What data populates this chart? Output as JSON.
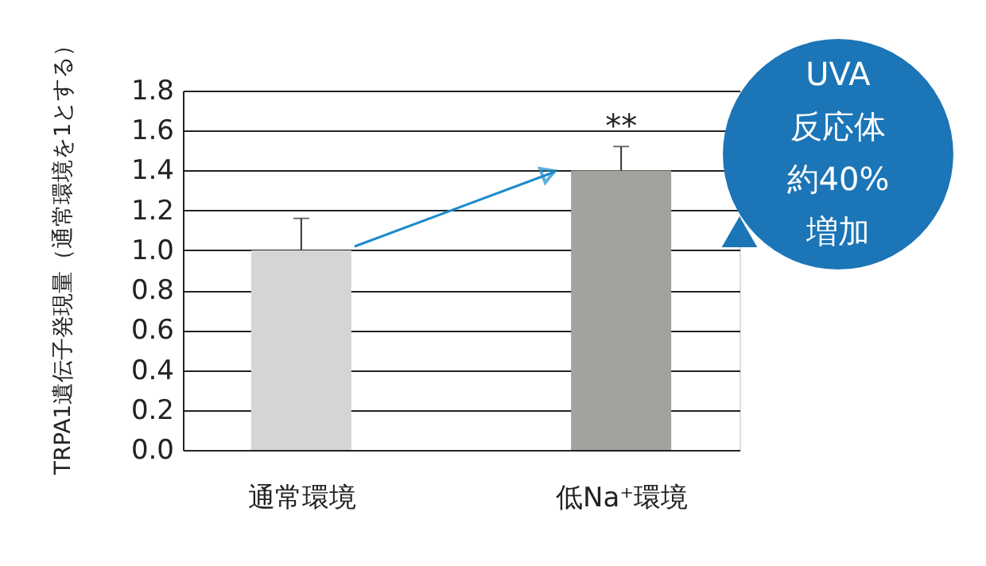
{
  "chart_data": {
    "type": "bar",
    "ylabel": "TRPA1遺伝子発現量（通常環境を1とする）",
    "categories": [
      "通常環境",
      "低Na⁺環境"
    ],
    "values": [
      1.0,
      1.4
    ],
    "errors": [
      0.16,
      0.12
    ],
    "colors": [
      "#d4d5d6",
      "#a2a29f"
    ],
    "ylim": [
      0,
      1.8
    ],
    "yticks": [
      {
        "value": 0,
        "label": "0.0"
      },
      {
        "value": 0.2,
        "label": "0.2"
      },
      {
        "value": 0.4,
        "label": "0.4"
      },
      {
        "value": 0.6,
        "label": "0.6"
      },
      {
        "value": 0.8,
        "label": "0.8"
      },
      {
        "value": 1.0,
        "label": "1.0"
      },
      {
        "value": 1.2,
        "label": "1.2"
      },
      {
        "value": 1.4,
        "label": "1.4"
      },
      {
        "value": 1.6,
        "label": "1.6"
      },
      {
        "value": 1.8,
        "label": "1.8"
      }
    ],
    "grid": "y",
    "annotations": [
      "**",
      "UVA",
      "反応体",
      "約40%",
      "増加"
    ]
  }
}
